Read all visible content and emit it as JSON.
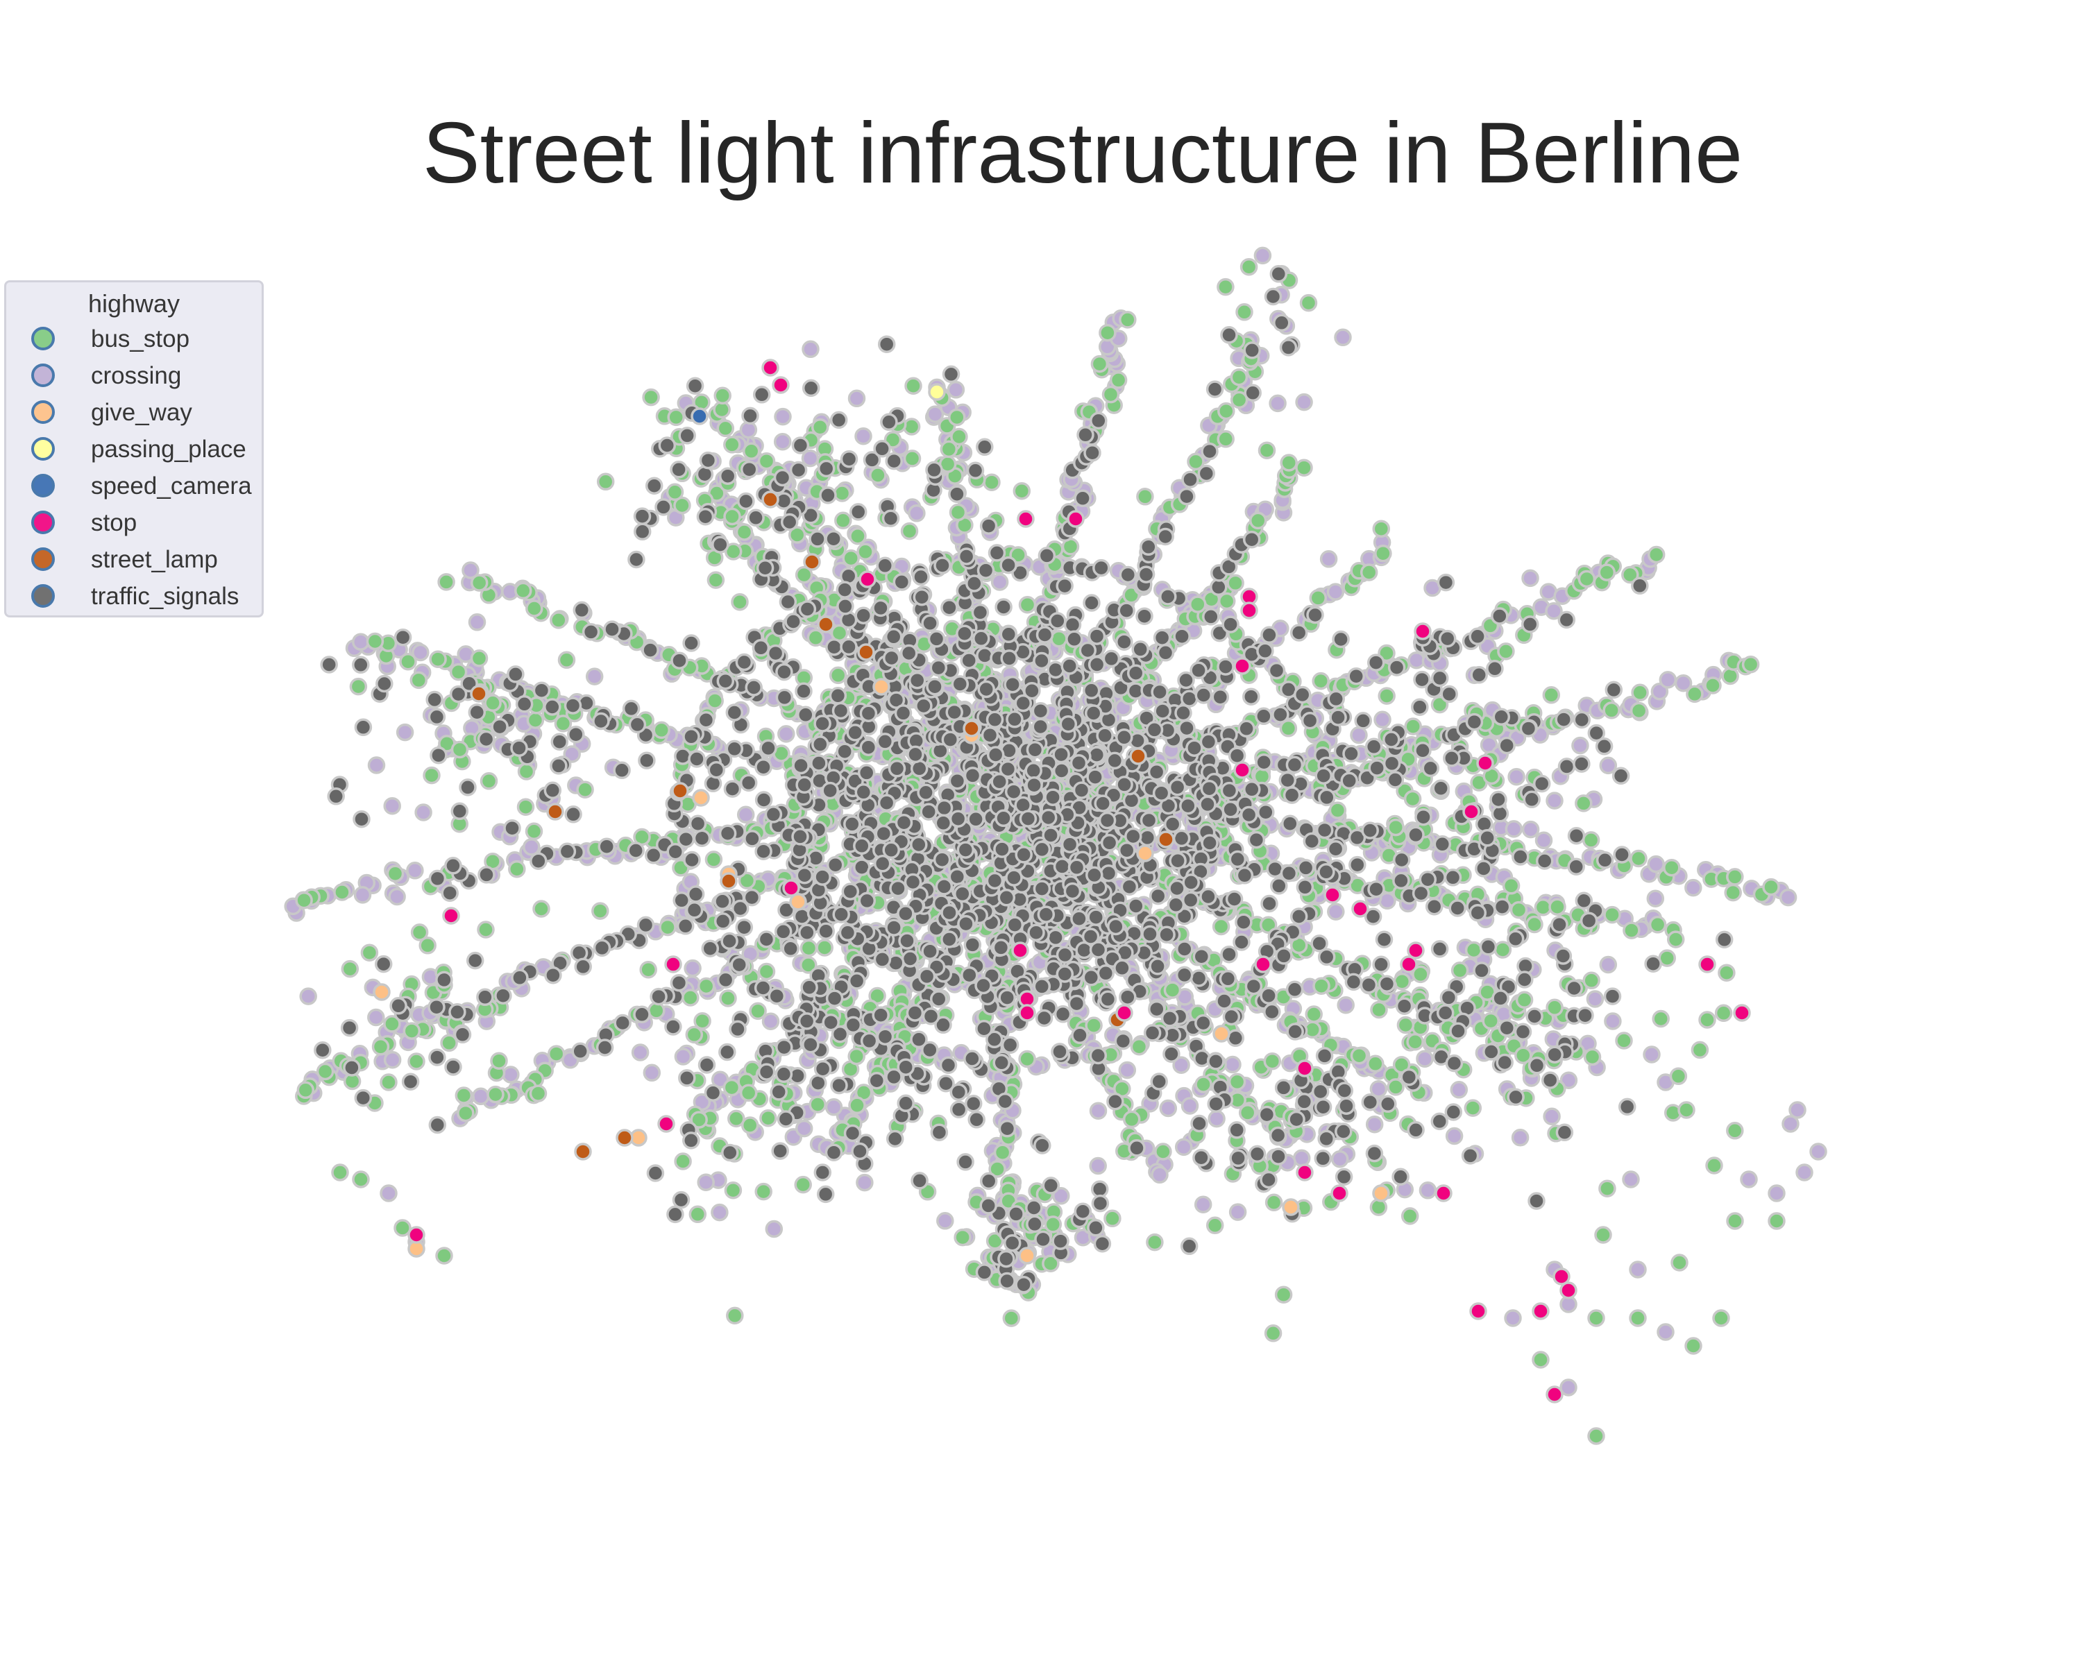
{
  "chart_data": {
    "type": "scatter",
    "title": "Street light infrastructure in Berline",
    "xlabel": "",
    "ylabel": "",
    "axes_visible": false,
    "grid": false,
    "legend": {
      "title": "highway",
      "placement": "top-left",
      "entries": [
        {
          "label": "bus_stop",
          "color": "#7fc97f"
        },
        {
          "label": "crossing",
          "color": "#beaed4"
        },
        {
          "label": "give_way",
          "color": "#fdc086"
        },
        {
          "label": "passing_place",
          "color": "#ffff99"
        },
        {
          "label": "speed_camera",
          "color": "#386cb0"
        },
        {
          "label": "stop",
          "color": "#f0027f"
        },
        {
          "label": "street_lamp",
          "color": "#bf5b17"
        },
        {
          "label": "traffic_signals",
          "color": "#666666"
        }
      ]
    },
    "marker_edge_color": "#c8c8c8",
    "series_note_counts": "dense point cloud of thousands of nodes; densest in the center, traffic_signals most common",
    "series": [
      {
        "name": "bus_stop",
        "color": "#7fc97f",
        "count": 1300
      },
      {
        "name": "crossing",
        "color": "#beaed4",
        "count": 1000
      },
      {
        "name": "give_way",
        "color": "#fdc086",
        "count": 40
      },
      {
        "name": "passing_place",
        "color": "#ffff99",
        "count": 1
      },
      {
        "name": "speed_camera",
        "color": "#386cb0",
        "count": 1
      },
      {
        "name": "stop",
        "color": "#f0027f",
        "count": 70
      },
      {
        "name": "street_lamp",
        "color": "#bf5b17",
        "count": 20
      },
      {
        "name": "traffic_signals",
        "color": "#666666",
        "count": 1700
      }
    ]
  }
}
